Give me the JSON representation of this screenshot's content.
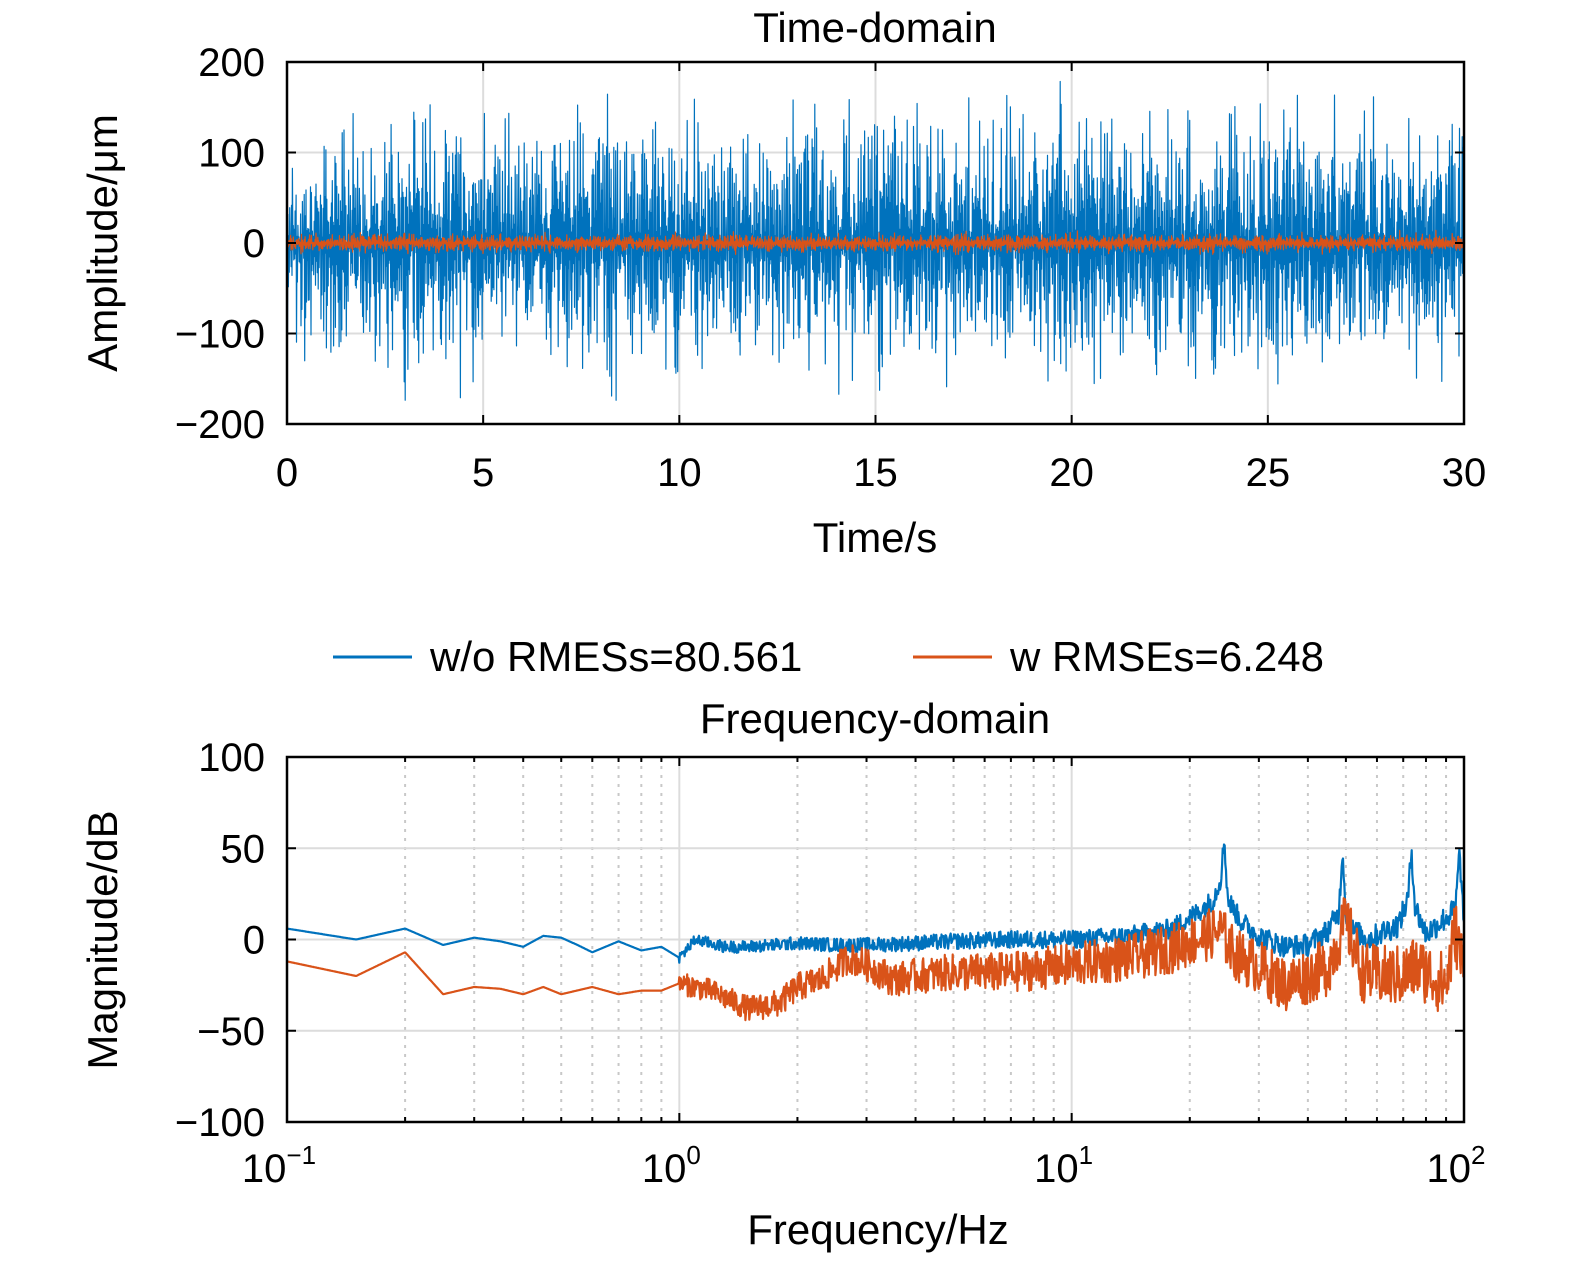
{
  "chart_data": [
    {
      "type": "line",
      "title": "Time-domain",
      "xlabel": "Time/s",
      "ylabel": "Amplitude/μm",
      "xlim": [
        0,
        30
      ],
      "ylim": [
        -200,
        200
      ],
      "xscale": "linear",
      "xticks": [
        "0",
        "5",
        "10",
        "15",
        "20",
        "25",
        "30"
      ],
      "yticks": [
        "−200",
        "−100",
        "0",
        "100",
        "200"
      ],
      "grid": true,
      "series": [
        {
          "name": "w/o RMESs=80.561",
          "color": "#0072BD",
          "approx_amplitude_envelope": {
            "x": [
              0,
              2,
              4,
              6,
              8,
              10,
              12,
              14,
              16,
              18,
              20,
              22,
              24,
              26,
              28,
              30
            ],
            "y": [
              150,
              130,
              175,
              130,
              170,
              160,
              150,
              165,
              155,
              160,
              180,
              150,
              165,
              160,
              165,
              140
            ]
          }
        },
        {
          "name": "w RMSEs=6.248",
          "color": "#D95319",
          "approx_amplitude_envelope": {
            "x": [
              0,
              30
            ],
            "y": [
              12,
              12
            ]
          }
        }
      ]
    },
    {
      "type": "line",
      "title": "Frequency-domain",
      "xlabel": "Frequency/Hz",
      "ylabel": "Magnitude/dB",
      "xlim": [
        0.1,
        100
      ],
      "ylim": [
        -100,
        100
      ],
      "xscale": "log",
      "xticks": [
        {
          "base": "10",
          "exp": "−1"
        },
        {
          "base": "10",
          "exp": "0"
        },
        {
          "base": "10",
          "exp": "1"
        },
        {
          "base": "10",
          "exp": "2"
        }
      ],
      "yticks": [
        "−100",
        "−50",
        "0",
        "50",
        "100"
      ],
      "grid": true,
      "legend": {
        "placement": "top",
        "entries": [
          {
            "label": "w/o RMESs=80.561",
            "color": "#0072BD"
          },
          {
            "label": "w RMSEs=6.248",
            "color": "#D95319"
          }
        ]
      },
      "series": [
        {
          "name": "w/o RMESs=80.561",
          "color": "#0072BD",
          "x": [
            0.1,
            0.15,
            0.2,
            0.25,
            0.3,
            0.35,
            0.4,
            0.45,
            0.5,
            0.55,
            0.6,
            0.7,
            0.8,
            0.9,
            1.0,
            1.1,
            1.3,
            1.5,
            2.0,
            2.5,
            3.0,
            4.0,
            5.0,
            7.0,
            10.0,
            14.0,
            18.0,
            21.0,
            23.0,
            24.0,
            24.5,
            25.0,
            27.0,
            30.0,
            35.0,
            40.0,
            45.0,
            48.0,
            49.0,
            50.0,
            52.0,
            57.0,
            62.0,
            68.0,
            72.0,
            73.5,
            75.0,
            80.0,
            90.0,
            95.0,
            97.5,
            100.0
          ],
          "y": [
            6,
            0,
            6,
            -3,
            1,
            -1,
            -4,
            2,
            1,
            -3,
            -7,
            -1,
            -6,
            -4,
            -10,
            0,
            -4,
            -4,
            -2,
            -3,
            -3,
            -2,
            -1,
            0,
            0,
            2,
            6,
            15,
            22,
            34,
            55,
            22,
            10,
            2,
            -4,
            -3,
            5,
            15,
            50,
            15,
            5,
            0,
            4,
            8,
            22,
            50,
            18,
            3,
            12,
            16,
            48,
            6
          ]
        },
        {
          "name": "w RMSEs=6.248",
          "color": "#D95319",
          "x": [
            0.1,
            0.15,
            0.2,
            0.25,
            0.3,
            0.35,
            0.4,
            0.45,
            0.5,
            0.6,
            0.7,
            0.8,
            0.9,
            1.0,
            1.2,
            1.5,
            1.8,
            2.0,
            2.3,
            2.7,
            3.0,
            3.5,
            4.0,
            5.0,
            7.0,
            10.0,
            14.0,
            18.0,
            22.0,
            24.0,
            26.0,
            30.0,
            35.0,
            40.0,
            45.0,
            50.0,
            55.0,
            62.0,
            70.0,
            75.0,
            80.0,
            90.0,
            95.0,
            100.0
          ],
          "y": [
            -12,
            -20,
            -7,
            -30,
            -26,
            -27,
            -30,
            -26,
            -30,
            -26,
            -30,
            -28,
            -28,
            -24,
            -28,
            -38,
            -35,
            -26,
            -22,
            -10,
            -14,
            -22,
            -20,
            -18,
            -18,
            -14,
            -10,
            -5,
            2,
            5,
            -8,
            -15,
            -25,
            -20,
            -15,
            10,
            -18,
            -20,
            -20,
            -15,
            -18,
            -25,
            5,
            -18
          ]
        }
      ]
    }
  ]
}
